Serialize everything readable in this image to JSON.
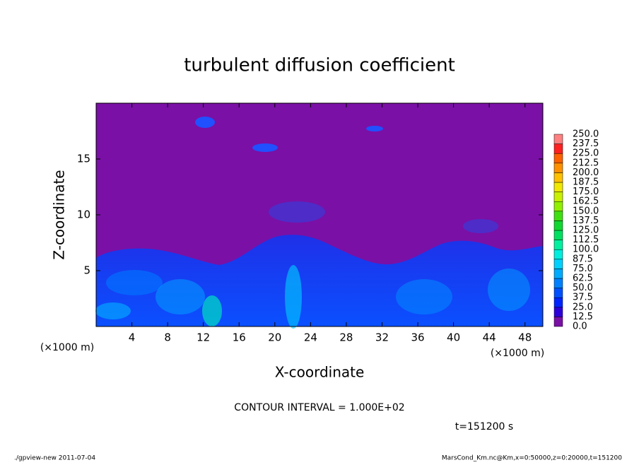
{
  "chart_data": {
    "type": "contour",
    "title": "turbulent diffusion coefficient",
    "xlabel": "X-coordinate",
    "ylabel": "Z-coordinate",
    "x_unit": "(×1000 m)",
    "xlim": [
      0,
      50
    ],
    "xticks": [
      4,
      8,
      12,
      16,
      20,
      24,
      28,
      32,
      36,
      40,
      44,
      48
    ],
    "ylim": [
      0,
      20
    ],
    "yticks": [
      5,
      10,
      15
    ],
    "colorbar": {
      "levels": [
        {
          "value": 0,
          "label": "0.0"
        },
        12.5,
        {
          "value": 25,
          "label": "25.0"
        },
        37.5,
        {
          "value": 50,
          "label": "50.0"
        },
        62.5,
        {
          "value": 75,
          "label": "75.0"
        },
        87.5,
        {
          "value": 100,
          "label": "100.0"
        },
        112.5,
        {
          "value": 125,
          "label": "125.0"
        },
        137.5,
        {
          "value": 150,
          "label": "150.0"
        },
        162.5,
        {
          "value": 175,
          "label": "175.0"
        },
        187.5,
        {
          "value": 200,
          "label": "200.0"
        },
        212.5,
        {
          "value": 225,
          "label": "225.0"
        },
        237.5,
        {
          "value": 250,
          "label": "250.0"
        }
      ],
      "colors": [
        "#7a10a6",
        "#2c00d8",
        "#0024ff",
        "#0050ff",
        "#0080ff",
        "#00aaff",
        "#00d0ff",
        "#00eedd",
        "#00f0a0",
        "#00e060",
        "#10d830",
        "#40e010",
        "#90f000",
        "#c8f000",
        "#f0e800",
        "#ffc000",
        "#ff9000",
        "#ff6000",
        "#ff2020",
        "#ff8080"
      ]
    },
    "annotation": "CONTOUR INTERVAL = 1.000E+02",
    "time_label": "t=151200 s",
    "footer_left": "./gpview-new  2011-07-04",
    "footer_right": "MarsCond_Km.nc@Km,x=0:50000,z=0:20000,t=151200"
  }
}
